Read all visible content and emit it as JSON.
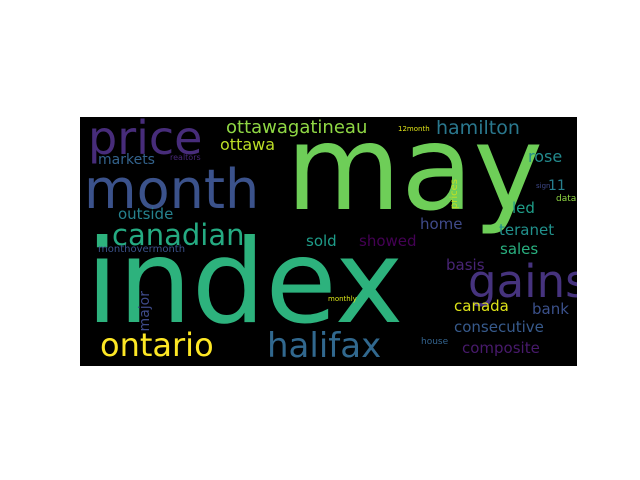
{
  "words": {
    "may": {
      "text": "may",
      "color": "#6ece58"
    },
    "index": {
      "text": "index",
      "color": "#2db27d"
    },
    "month": {
      "text": "month",
      "color": "#3b528b"
    },
    "price": {
      "text": "price",
      "color": "#472c7a"
    },
    "gains": {
      "text": "gains",
      "color": "#46337e"
    },
    "ontario": {
      "text": "ontario",
      "color": "#fde725"
    },
    "halifax": {
      "text": "halifax",
      "color": "#31688e"
    },
    "canadian": {
      "text": "canadian",
      "color": "#25ab82"
    },
    "ottawagatineau": {
      "text": "ottawagatineau",
      "color": "#8fd744"
    },
    "hamilton": {
      "text": "hamilton",
      "color": "#2a788e"
    },
    "ottawa": {
      "text": "ottawa",
      "color": "#bddf26"
    },
    "markets": {
      "text": "markets",
      "color": "#33638d"
    },
    "realtors": {
      "text": "realtors",
      "color": "#482878"
    },
    "twelve_month": {
      "text": "12month",
      "color": "#dfe318"
    },
    "rose": {
      "text": "rose",
      "color": "#238a8d"
    },
    "outside": {
      "text": "outside",
      "color": "#26828e"
    },
    "led": {
      "text": "led",
      "color": "#1f9e89"
    },
    "eleven": {
      "text": "11",
      "color": "#277f8e"
    },
    "sign": {
      "text": "sign",
      "color": "#3e4989"
    },
    "prices": {
      "text": "prices",
      "color": "#c2df23"
    },
    "data": {
      "text": "data",
      "color": "#90d743"
    },
    "teranet": {
      "text": "teranet",
      "color": "#21918c"
    },
    "showed": {
      "text": "showed",
      "color": "#440154"
    },
    "sold": {
      "text": "sold",
      "color": "#1e9c89"
    },
    "home": {
      "text": "home",
      "color": "#3f4a8a"
    },
    "sales": {
      "text": "sales",
      "color": "#29af7f"
    },
    "monthovermonth": {
      "text": "monthovermonth",
      "color": "#3b528b"
    },
    "major": {
      "text": "major",
      "color": "#3e4a89"
    },
    "basis": {
      "text": "basis",
      "color": "#482475"
    },
    "canada": {
      "text": "canada",
      "color": "#dde318"
    },
    "bank": {
      "text": "bank",
      "color": "#3b518b"
    },
    "monthly": {
      "text": "monthly",
      "color": "#d8e219"
    },
    "consecutive": {
      "text": "consecutive",
      "color": "#375a8c"
    },
    "house": {
      "text": "house",
      "color": "#33638d"
    },
    "composite": {
      "text": "composite",
      "color": "#481a6c"
    }
  }
}
